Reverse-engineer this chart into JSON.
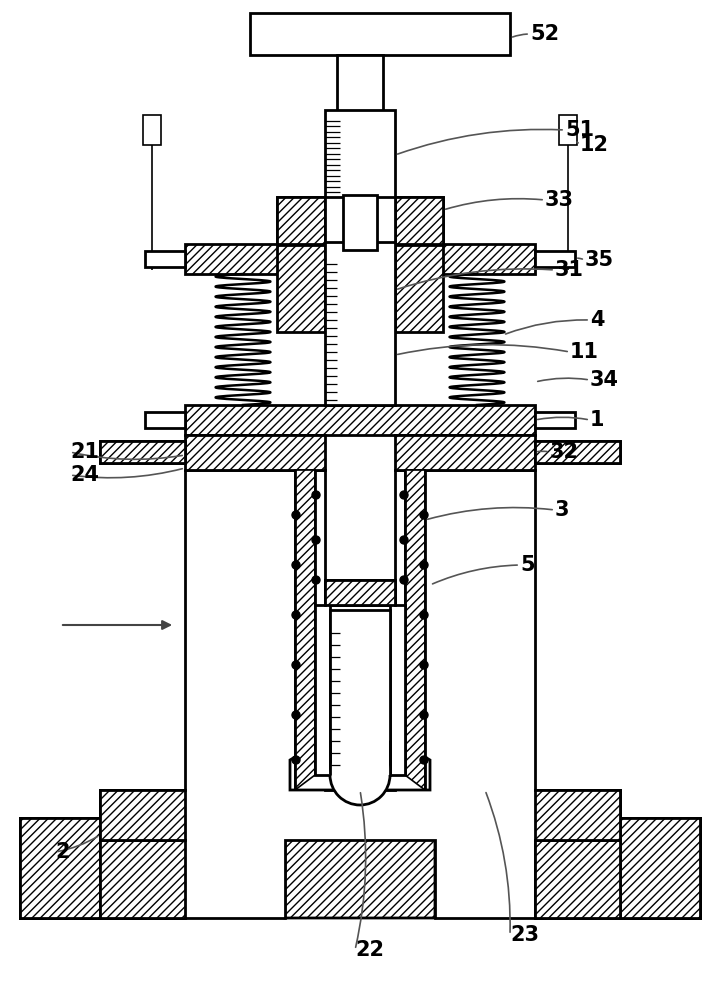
{
  "bg_color": "#ffffff",
  "lc": "#000000",
  "lw": 2.0,
  "lw_thin": 1.2,
  "hatch": "////",
  "fig_w": 7.2,
  "fig_h": 10.0,
  "dpi": 100
}
